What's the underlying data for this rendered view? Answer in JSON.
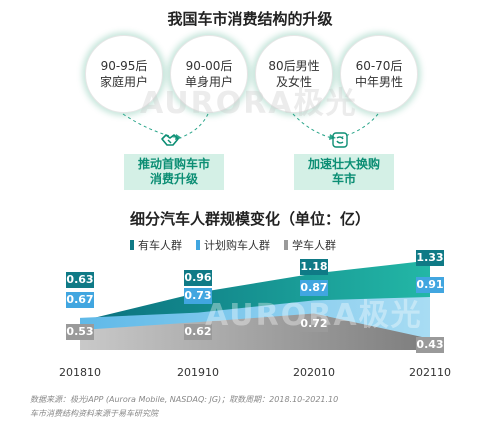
{
  "title": "我国车市消费结构的升级",
  "segments": [
    {
      "line1": "90-95后",
      "line2": "家庭用户"
    },
    {
      "line1": "90-00后",
      "line2": "单身用户"
    },
    {
      "line1": "80后男性",
      "line2": "及女性"
    },
    {
      "line1": "60-70后",
      "line2": "中年男性"
    }
  ],
  "trends": [
    {
      "line1": "推动首购车市",
      "line2": "消费升级",
      "icon": "handshake-icon"
    },
    {
      "line1": "加速壮大换购",
      "line2": "车市",
      "icon": "refresh-icon"
    }
  ],
  "watermark": "AURORA极光",
  "colors": {
    "teal": "#1ca6a2",
    "tealDark": "#0f7a86",
    "blue": "#41a6e0",
    "gray": "#9a9a9a",
    "green": "#0c8e74"
  },
  "chart_data": {
    "type": "area",
    "title": "细分汽车人群规模变化（单位：亿）",
    "categories": [
      "201810",
      "201910",
      "202010",
      "202110"
    ],
    "series": [
      {
        "name": "有车人群",
        "values": [
          0.63,
          0.96,
          1.18,
          1.33
        ],
        "color": "#0f7a86"
      },
      {
        "name": "计划购车人群",
        "values": [
          0.67,
          0.73,
          0.87,
          0.91
        ],
        "color": "#41a6e0"
      },
      {
        "name": "学车人群",
        "values": [
          0.53,
          0.62,
          0.72,
          0.43
        ],
        "color": "#9a9a9a"
      }
    ],
    "legend_position": "top"
  },
  "footer": {
    "source": "数据来源：极光iAPP (Aurora Mobile, NASDAQ: JG)；取数周期：2018.10-2021.10",
    "note": "车市消费结构资料来源于易车研究院"
  }
}
